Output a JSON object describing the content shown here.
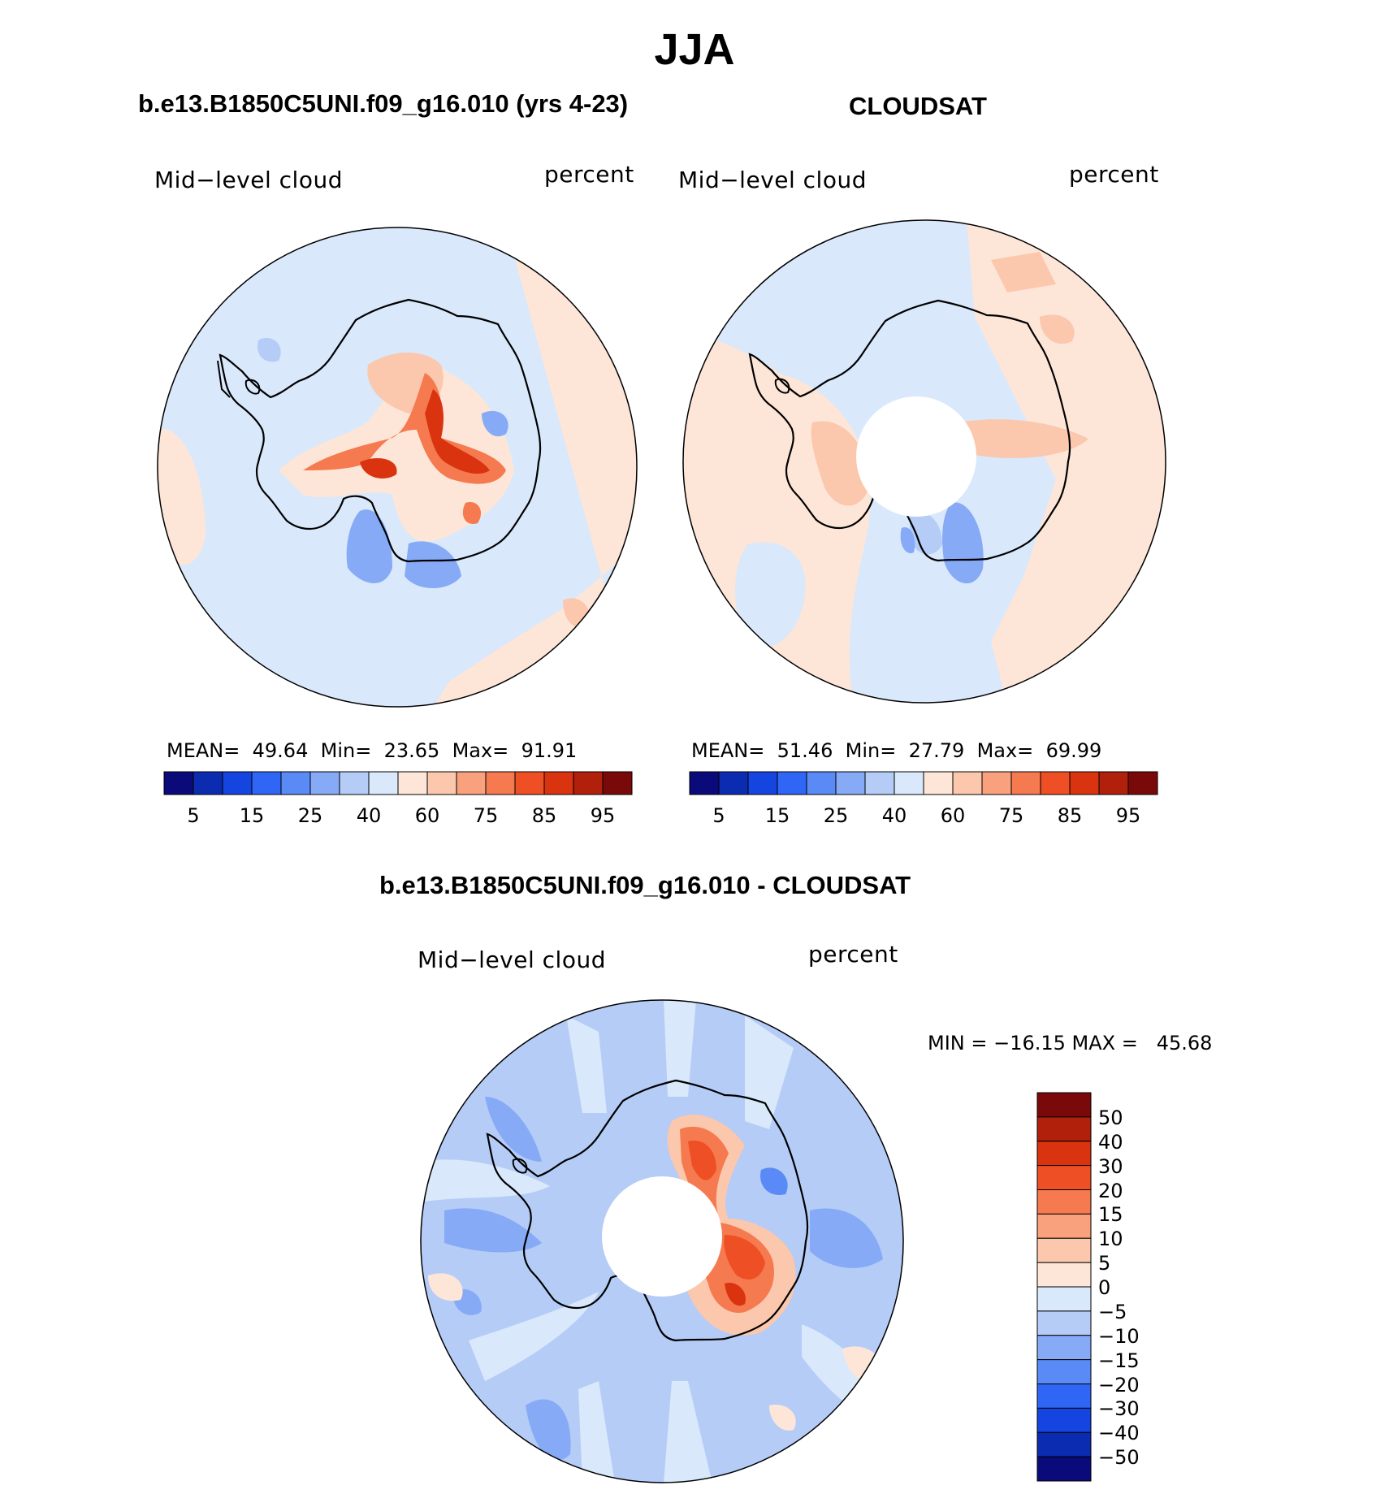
{
  "title": "JJA",
  "panels": [
    {
      "name": "model",
      "title": "b.e13.B1850C5UNI.f09_g16.010 (yrs 4-23)",
      "left_label": "Mid−level cloud",
      "right_label": "percent",
      "stats": {
        "mean_label": "MEAN=",
        "mean": "49.64",
        "min_label": "Min=",
        "min": "23.65",
        "max_label": "Max=",
        "max": "91.91"
      },
      "colorbar_ticks": [
        "5",
        "15",
        "25",
        "40",
        "60",
        "75",
        "85",
        "95"
      ]
    },
    {
      "name": "obs",
      "title": "CLOUDSAT",
      "left_label": "Mid−level cloud",
      "right_label": "percent",
      "stats": {
        "mean_label": "MEAN=",
        "mean": "51.46",
        "min_label": "Min=",
        "min": "27.79",
        "max_label": "Max=",
        "max": "69.99"
      },
      "colorbar_ticks": [
        "5",
        "15",
        "25",
        "40",
        "60",
        "75",
        "85",
        "95"
      ]
    }
  ],
  "diff": {
    "title": "b.e13.B1850C5UNI.f09_g16.010 - CLOUDSAT",
    "left_label": "Mid−level cloud",
    "right_label": "percent",
    "minmax": "MIN = −16.15 MAX =   45.68",
    "colorbar_ticks": [
      "50",
      "40",
      "30",
      "20",
      "15",
      "10",
      "5",
      "0",
      "−5",
      "−10",
      "−15",
      "−20",
      "−30",
      "−40",
      "−50"
    ]
  },
  "colors": {
    "scale": [
      "#0a0a7a",
      "#0b2bb0",
      "#1445e0",
      "#2f66f5",
      "#5a8af5",
      "#86aaf5",
      "#b5ccf7",
      "#d9e8fb",
      "#fde6d8",
      "#fbc7ad",
      "#f9a07d",
      "#f57a4f",
      "#ef4f25",
      "#da3310",
      "#b0200a",
      "#7a0a0a"
    ],
    "diff_scale": [
      "#0a0a7a",
      "#0b2bb0",
      "#1445e0",
      "#2f66f5",
      "#5a8af5",
      "#86aaf5",
      "#b5ccf7",
      "#d9e8fb",
      "#fde6d8",
      "#fbc7ad",
      "#f9a07d",
      "#f57a4f",
      "#ef4f25",
      "#da3310",
      "#b0200a",
      "#7a0a0a"
    ]
  }
}
